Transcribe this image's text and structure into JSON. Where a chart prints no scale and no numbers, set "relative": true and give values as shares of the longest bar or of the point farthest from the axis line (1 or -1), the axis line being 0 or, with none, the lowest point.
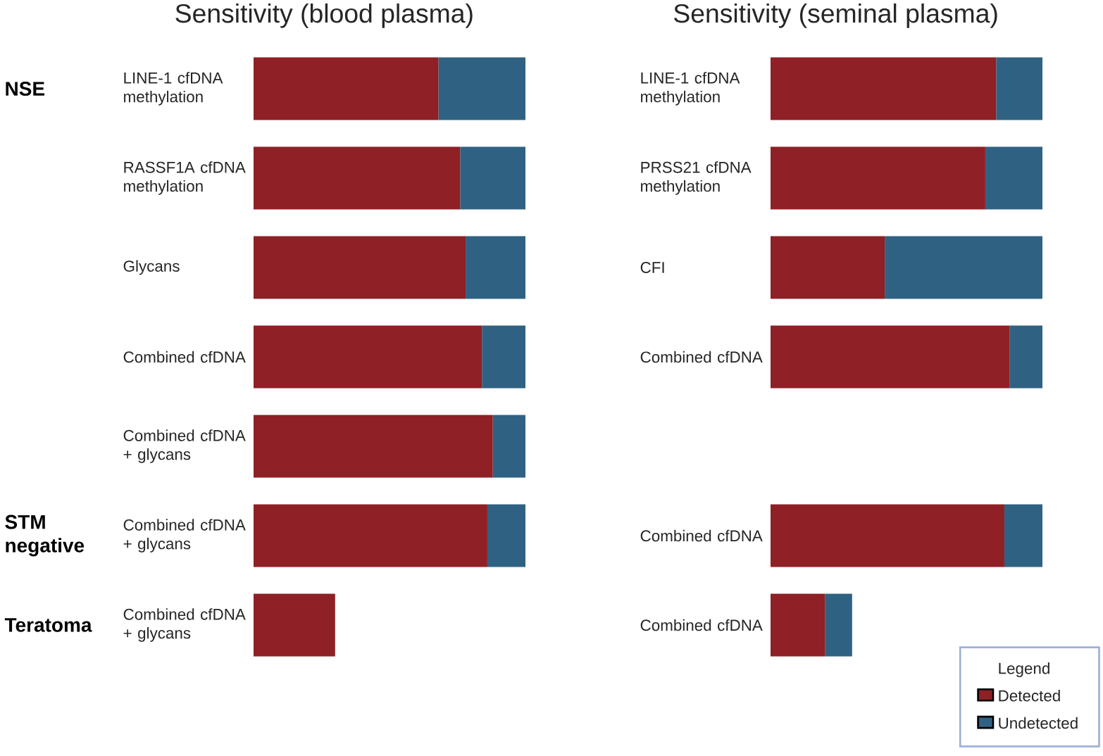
{
  "chart_data": [
    {
      "type": "bar",
      "orientation": "horizontal",
      "stacked": true,
      "relative": true,
      "title": "Sensitivity (blood plasma)",
      "categories": [
        "LINE-1 cfDNA methylation",
        "RASSF1A cfDNA methylation",
        "Glycans",
        "Combined cfDNA",
        "Combined cfDNA + glycans",
        "Combined cfDNA + glycans",
        "Combined cfDNA + glycans"
      ],
      "series": [
        {
          "color": "#8e2026",
          "values": [
            0.68,
            0.76,
            0.78,
            0.84,
            0.88,
            0.86,
            0.3
          ]
        },
        {
          "color": "#2f6282",
          "values": [
            0.32,
            0.24,
            0.22,
            0.16,
            0.12,
            0.14,
            null
          ]
        }
      ],
      "annotations": [
        "NSE",
        "STM negative",
        "Teratoma"
      ]
    },
    {
      "type": "bar",
      "orientation": "horizontal",
      "stacked": true,
      "relative": true,
      "title": "Sensitivity (seminal plasma)",
      "categories": [
        "LINE-1 cfDNA methylation",
        "PRSS21 cfDNA methylation",
        "CFI",
        "Combined cfDNA",
        null,
        "Combined cfDNA",
        "Combined cfDNA"
      ],
      "series": [
        {
          "name": "Detected",
          "color": "#8e2026",
          "values": [
            0.83,
            0.79,
            0.42,
            0.88,
            null,
            0.86,
            0.2
          ]
        },
        {
          "name": "Undetected",
          "color": "#2f6282",
          "values": [
            0.17,
            0.21,
            0.58,
            0.12,
            null,
            0.14,
            0.1
          ]
        }
      ],
      "legend": "bottom right",
      "legend_title": "Legend"
    }
  ]
}
